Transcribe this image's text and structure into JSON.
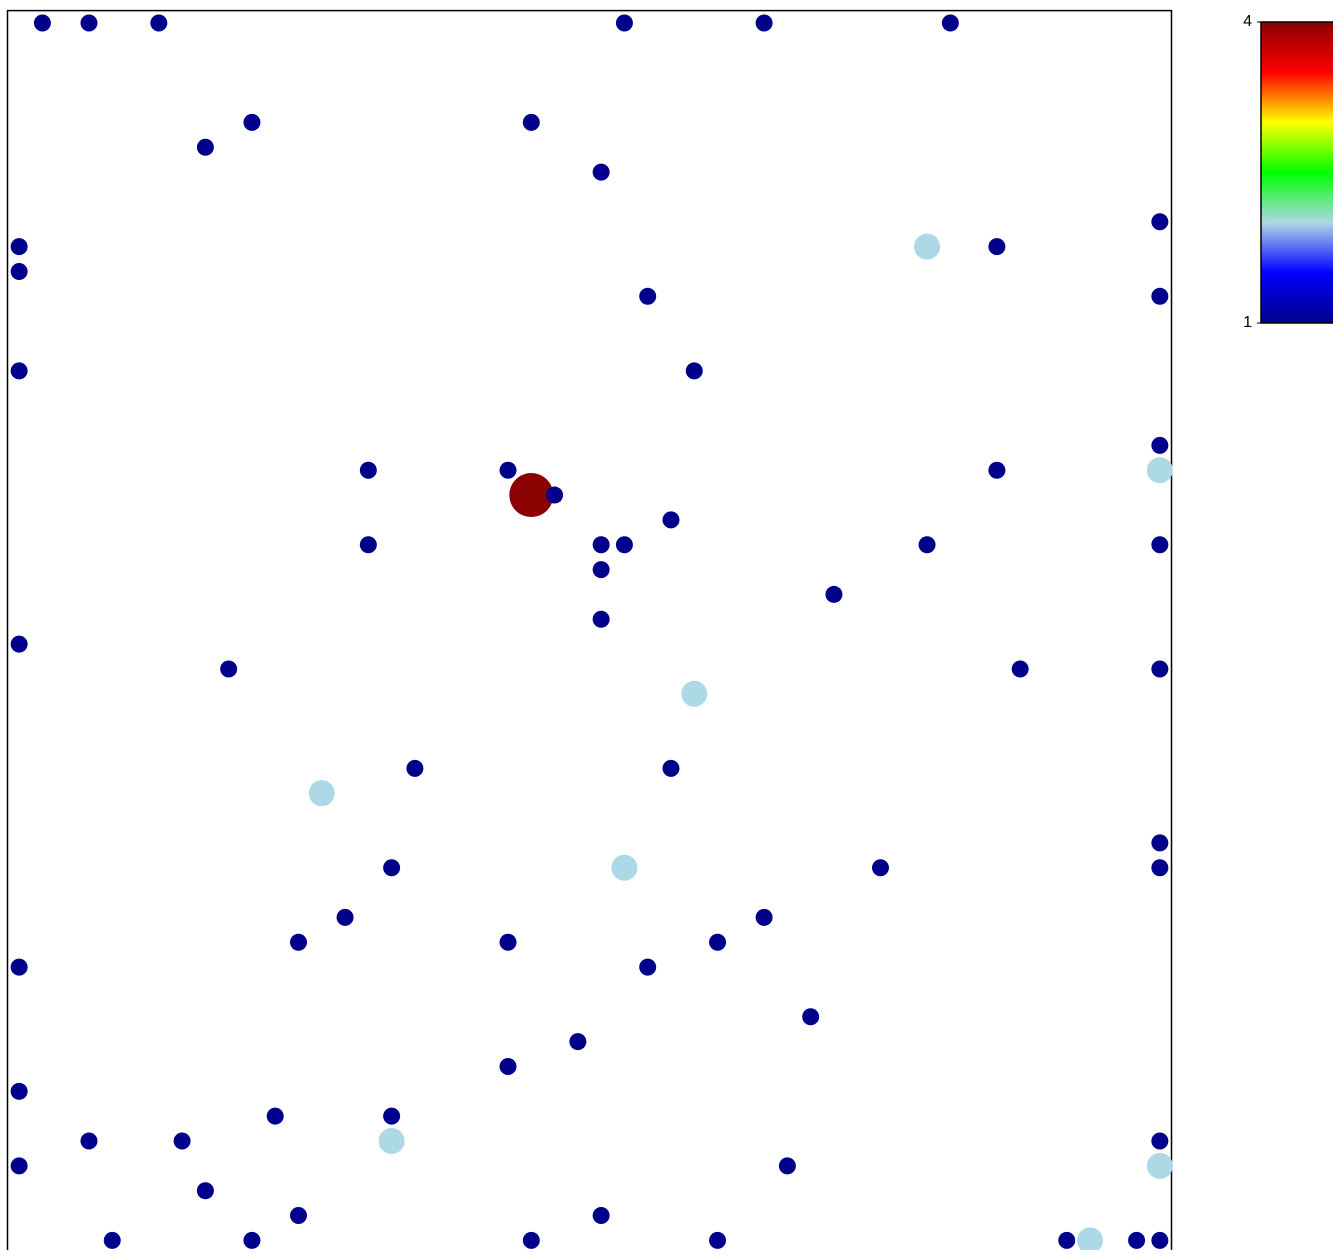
{
  "chart_data": {
    "type": "scatter",
    "x": [
      1,
      3,
      6,
      26,
      32,
      40,
      10,
      22,
      8,
      25,
      49,
      0,
      39,
      42,
      0,
      27,
      49,
      0,
      29,
      49,
      15,
      21,
      42,
      49,
      22,
      23,
      28,
      15,
      25,
      26,
      39,
      49,
      25,
      35,
      25,
      0,
      9,
      43,
      49,
      29,
      17,
      28,
      13,
      49,
      16,
      26,
      37,
      49,
      14,
      32,
      12,
      21,
      30,
      0,
      27,
      34,
      24,
      21,
      0,
      11,
      16,
      3,
      7,
      16,
      49,
      0,
      33,
      49,
      8,
      12,
      25,
      4,
      10,
      22,
      30,
      45,
      46,
      48,
      49
    ],
    "y": [
      0,
      0,
      0,
      0,
      0,
      0,
      4,
      4,
      5,
      6,
      8,
      9,
      9,
      9,
      10,
      11,
      11,
      14,
      14,
      17,
      18,
      18,
      18,
      18,
      19,
      19,
      20,
      21,
      21,
      21,
      21,
      21,
      22,
      23,
      24,
      25,
      26,
      26,
      26,
      27,
      30,
      30,
      31,
      33,
      34,
      34,
      34,
      34,
      36,
      36,
      37,
      37,
      37,
      38,
      38,
      40,
      41,
      42,
      43,
      44,
      44,
      45,
      45,
      45,
      45,
      46,
      46,
      46,
      47,
      48,
      48,
      49,
      49,
      49,
      49,
      49,
      49,
      49,
      49
    ],
    "values": [
      1,
      1,
      1,
      1,
      1,
      1,
      1,
      1,
      1,
      1,
      1,
      1,
      2,
      1,
      1,
      1,
      1,
      1,
      1,
      1,
      1,
      1,
      1,
      2,
      4,
      1,
      1,
      1,
      1,
      1,
      1,
      1,
      1,
      1,
      1,
      1,
      1,
      1,
      1,
      2,
      1,
      1,
      2,
      1,
      1,
      2,
      1,
      1,
      1,
      1,
      1,
      1,
      1,
      1,
      1,
      1,
      1,
      1,
      1,
      1,
      1,
      1,
      1,
      2,
      1,
      1,
      1,
      2,
      1,
      1,
      1,
      1,
      1,
      1,
      1,
      1,
      2,
      1,
      1
    ],
    "xlim": [
      -0.5,
      49.5
    ],
    "ylim": [
      49.5,
      -0.5
    ],
    "colorscale": [
      "#00008b",
      "#0000ff",
      "#add8e6",
      "#00ff00",
      "#ffff00",
      "#ff0000",
      "#8b0000"
    ],
    "colorbar": {
      "range": [
        1,
        4
      ],
      "ticks": [
        1,
        4
      ]
    }
  }
}
